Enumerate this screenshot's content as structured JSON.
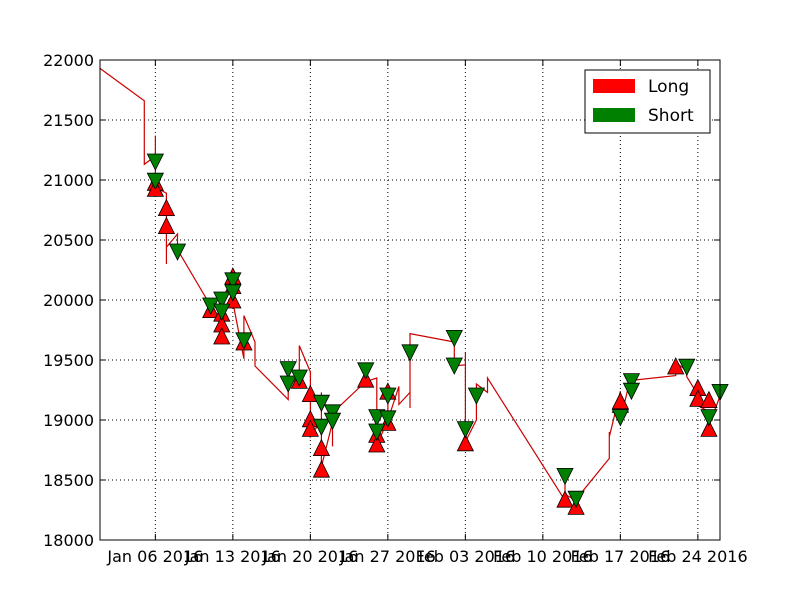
{
  "chart_data": {
    "type": "line",
    "y_ticks": [
      18000,
      18500,
      19000,
      19500,
      20000,
      20500,
      21000,
      21500,
      22000
    ],
    "x_ticks": [
      "Jan 06 2016",
      "Jan 13 2016",
      "Jan 20 2016",
      "Jan 27 2016",
      "Feb 03 2016",
      "Feb 10 2016",
      "Feb 17 2016",
      "Feb 24 2016"
    ],
    "x_tick_dates": [
      "2016-01-06",
      "2016-01-13",
      "2016-01-20",
      "2016-01-27",
      "2016-02-03",
      "2016-02-10",
      "2016-02-17",
      "2016-02-24"
    ],
    "xlim": [
      "2016-01-01",
      "2016-02-26"
    ],
    "ylim": [
      18000,
      22000
    ],
    "grid": true,
    "legend": {
      "placement": "top-right",
      "entries": [
        {
          "label": "Long",
          "color": "#ff0000"
        },
        {
          "label": "Short",
          "color": "#008000"
        }
      ]
    },
    "series": [
      {
        "color": "#cc0000",
        "points": [
          [
            "2016-01-01",
            21930
          ],
          [
            "2016-01-05",
            21660
          ],
          [
            "2016-01-05",
            21240
          ],
          [
            "2016-01-05",
            21370
          ],
          [
            "2016-01-05",
            21130
          ],
          [
            "2016-01-06",
            21200
          ],
          [
            "2016-01-06",
            21370
          ],
          [
            "2016-01-06",
            21140
          ],
          [
            "2016-01-06",
            21050
          ],
          [
            "2016-01-06",
            21110
          ],
          [
            "2016-01-06",
            20990
          ],
          [
            "2016-01-06",
            21030
          ],
          [
            "2016-01-06",
            20940
          ],
          [
            "2016-01-07",
            20890
          ],
          [
            "2016-01-07",
            20780
          ],
          [
            "2016-01-07",
            20650
          ],
          [
            "2016-01-07",
            20300
          ],
          [
            "2016-01-07",
            20440
          ],
          [
            "2016-01-08",
            20550
          ],
          [
            "2016-01-08",
            20400
          ],
          [
            "2016-01-08",
            20420
          ],
          [
            "2016-01-11",
            19950
          ],
          [
            "2016-01-11",
            19900
          ],
          [
            "2016-01-12",
            19850
          ],
          [
            "2016-01-12",
            19780
          ],
          [
            "2016-01-12",
            19700
          ],
          [
            "2016-01-12",
            20020
          ],
          [
            "2016-01-13",
            20090
          ],
          [
            "2016-01-13",
            20200
          ],
          [
            "2016-01-13",
            20130
          ],
          [
            "2016-01-13",
            20050
          ],
          [
            "2016-01-13",
            19980
          ],
          [
            "2016-01-14",
            19510
          ],
          [
            "2016-01-14",
            19870
          ],
          [
            "2016-01-15",
            19650
          ],
          [
            "2016-01-15",
            19450
          ],
          [
            "2016-01-18",
            19170
          ],
          [
            "2016-01-18",
            19300
          ],
          [
            "2016-01-19",
            19350
          ],
          [
            "2016-01-19",
            19280
          ],
          [
            "2016-01-19",
            19620
          ],
          [
            "2016-01-20",
            19400
          ],
          [
            "2016-01-20",
            19200
          ],
          [
            "2016-01-20",
            18920
          ],
          [
            "2016-01-20",
            18860
          ],
          [
            "2016-01-21",
            19000
          ],
          [
            "2016-01-21",
            19230
          ],
          [
            "2016-01-21",
            18960
          ],
          [
            "2016-01-21",
            18770
          ],
          [
            "2016-01-21",
            18610
          ],
          [
            "2016-01-22",
            18980
          ],
          [
            "2016-01-22",
            18780
          ],
          [
            "2016-01-22",
            19060
          ],
          [
            "2016-01-25",
            19320
          ],
          [
            "2016-01-26",
            19350
          ],
          [
            "2016-01-26",
            19010
          ],
          [
            "2016-01-26",
            18880
          ],
          [
            "2016-01-26",
            18790
          ],
          [
            "2016-01-27",
            19000
          ],
          [
            "2016-01-27",
            19200
          ],
          [
            "2016-01-27",
            19250
          ],
          [
            "2016-01-27",
            19000
          ],
          [
            "2016-01-28",
            19280
          ],
          [
            "2016-01-28",
            19130
          ],
          [
            "2016-01-29",
            19230
          ],
          [
            "2016-01-29",
            19100
          ],
          [
            "2016-01-29",
            19720
          ],
          [
            "2016-02-02",
            19650
          ],
          [
            "2016-02-02",
            19450
          ],
          [
            "2016-02-03",
            19460
          ],
          [
            "2016-02-03",
            19430
          ],
          [
            "2016-02-03",
            19560
          ],
          [
            "2016-02-03",
            18820
          ],
          [
            "2016-02-04",
            19000
          ],
          [
            "2016-02-04",
            19220
          ],
          [
            "2016-02-04",
            19300
          ],
          [
            "2016-02-05",
            19230
          ],
          [
            "2016-02-05",
            19350
          ],
          [
            "2016-02-12",
            18330
          ],
          [
            "2016-02-12",
            18400
          ],
          [
            "2016-02-12",
            18520
          ],
          [
            "2016-02-12",
            18380
          ],
          [
            "2016-02-13",
            18330
          ],
          [
            "2016-02-13",
            18340
          ],
          [
            "2016-02-16",
            18680
          ],
          [
            "2016-02-16",
            18900
          ],
          [
            "2016-02-16",
            18860
          ],
          [
            "2016-02-17",
            19240
          ],
          [
            "2016-02-17",
            19150
          ],
          [
            "2016-02-17",
            19230
          ],
          [
            "2016-02-17",
            19000
          ],
          [
            "2016-02-18",
            19380
          ],
          [
            "2016-02-18",
            19280
          ],
          [
            "2016-02-18",
            19330
          ],
          [
            "2016-02-22",
            19370
          ],
          [
            "2016-02-22",
            19480
          ],
          [
            "2016-02-23",
            19410
          ],
          [
            "2016-02-23",
            19360
          ],
          [
            "2016-02-24",
            19210
          ],
          [
            "2016-02-24",
            19120
          ],
          [
            "2016-02-25",
            19070
          ],
          [
            "2016-02-25",
            18950
          ],
          [
            "2016-02-26",
            19200
          ]
        ]
      }
    ],
    "markers": {
      "long": [
        [
          "2016-01-06",
          20980
        ],
        [
          "2016-01-06",
          20930
        ],
        [
          "2016-01-07",
          20770
        ],
        [
          "2016-01-07",
          20620
        ],
        [
          "2016-01-11",
          19920
        ],
        [
          "2016-01-12",
          19890
        ],
        [
          "2016-01-12",
          19800
        ],
        [
          "2016-01-12",
          19700
        ],
        [
          "2016-01-13",
          20200
        ],
        [
          "2016-01-13",
          20120
        ],
        [
          "2016-01-13",
          20000
        ],
        [
          "2016-01-14",
          19650
        ],
        [
          "2016-01-19",
          19330
        ],
        [
          "2016-01-20",
          19220
        ],
        [
          "2016-01-20",
          19010
        ],
        [
          "2016-01-20",
          18930
        ],
        [
          "2016-01-21",
          18770
        ],
        [
          "2016-01-21",
          18590
        ],
        [
          "2016-01-25",
          19340
        ],
        [
          "2016-01-26",
          18880
        ],
        [
          "2016-01-26",
          18800
        ],
        [
          "2016-01-27",
          19240
        ],
        [
          "2016-01-27",
          18980
        ],
        [
          "2016-02-03",
          18810
        ],
        [
          "2016-02-12",
          18340
        ],
        [
          "2016-02-13",
          18280
        ],
        [
          "2016-02-17",
          19130
        ],
        [
          "2016-02-17",
          19160
        ],
        [
          "2016-02-22",
          19450
        ],
        [
          "2016-02-24",
          19270
        ],
        [
          "2016-02-24",
          19180
        ],
        [
          "2016-02-25",
          19170
        ],
        [
          "2016-02-25",
          18930
        ]
      ],
      "short": [
        [
          "2016-01-06",
          21150
        ],
        [
          "2016-01-06",
          20990
        ],
        [
          "2016-01-08",
          20400
        ],
        [
          "2016-01-11",
          19950
        ],
        [
          "2016-01-12",
          20000
        ],
        [
          "2016-01-12",
          19900
        ],
        [
          "2016-01-13",
          20160
        ],
        [
          "2016-01-13",
          20060
        ],
        [
          "2016-01-14",
          19660
        ],
        [
          "2016-01-18",
          19420
        ],
        [
          "2016-01-18",
          19300
        ],
        [
          "2016-01-19",
          19350
        ],
        [
          "2016-01-21",
          19140
        ],
        [
          "2016-01-21",
          18940
        ],
        [
          "2016-01-22",
          19060
        ],
        [
          "2016-01-22",
          18990
        ],
        [
          "2016-01-25",
          19410
        ],
        [
          "2016-01-26",
          19020
        ],
        [
          "2016-01-26",
          18900
        ],
        [
          "2016-01-27",
          19200
        ],
        [
          "2016-01-27",
          19010
        ],
        [
          "2016-01-29",
          19560
        ],
        [
          "2016-02-02",
          19680
        ],
        [
          "2016-02-02",
          19450
        ],
        [
          "2016-02-03",
          18920
        ],
        [
          "2016-02-04",
          19200
        ],
        [
          "2016-02-12",
          18530
        ],
        [
          "2016-02-13",
          18340
        ],
        [
          "2016-02-17",
          19020
        ],
        [
          "2016-02-18",
          19320
        ],
        [
          "2016-02-18",
          19240
        ],
        [
          "2016-02-23",
          19440
        ],
        [
          "2016-02-25",
          19020
        ],
        [
          "2016-02-26",
          19230
        ]
      ]
    }
  }
}
